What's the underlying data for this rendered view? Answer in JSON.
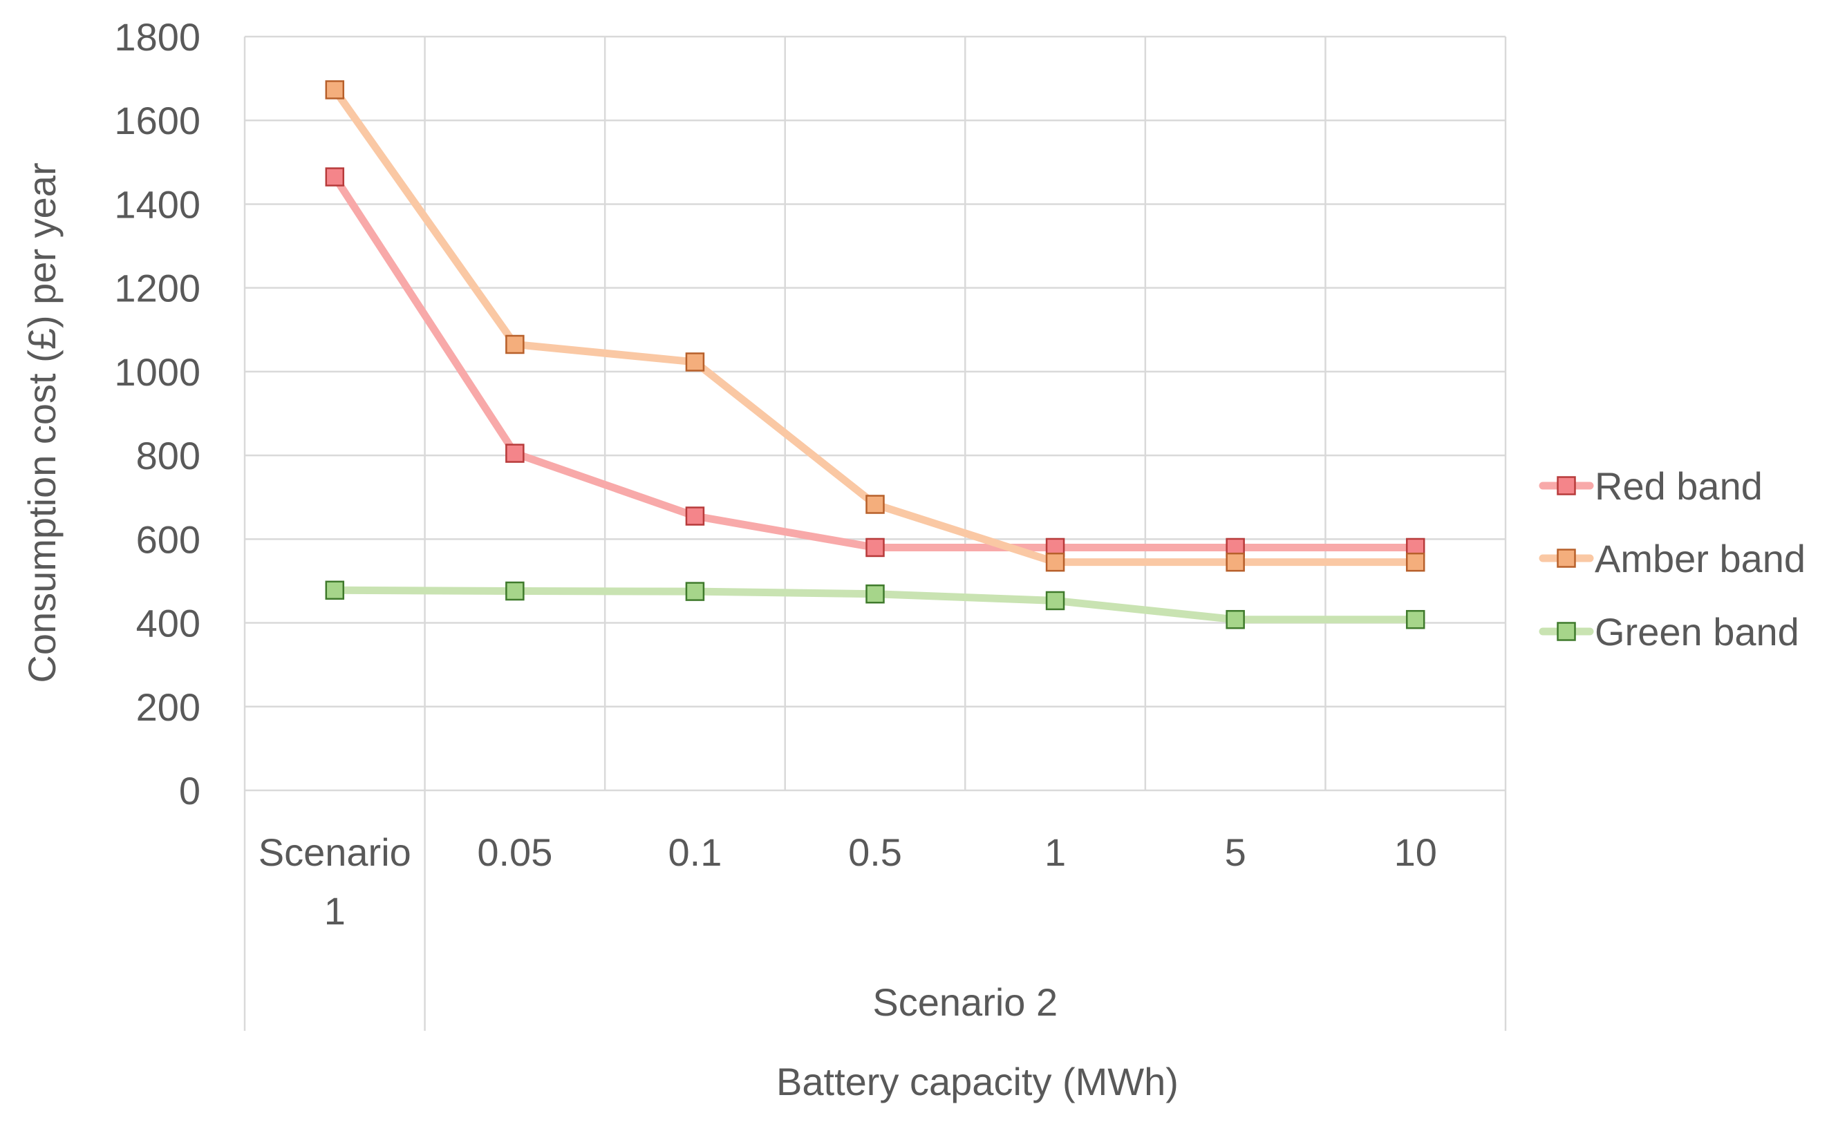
{
  "chart_data": {
    "type": "line",
    "title": "",
    "xlabel": "Battery capacity (MWh)",
    "ylabel": "Consumption cost (£) per year",
    "ylim": [
      0,
      1800
    ],
    "yticks": [
      0,
      200,
      400,
      600,
      800,
      1000,
      1200,
      1400,
      1600,
      1800
    ],
    "grid": true,
    "legend_position": "right",
    "categories": [
      {
        "label": "Scenario",
        "label2": "1",
        "group": "Scenario 1"
      },
      {
        "label": "0.05",
        "group": "Scenario 2"
      },
      {
        "label": "0.1",
        "group": "Scenario 2"
      },
      {
        "label": "0.5",
        "group": "Scenario 2"
      },
      {
        "label": "1",
        "group": "Scenario 2"
      },
      {
        "label": "5",
        "group": "Scenario 2"
      },
      {
        "label": "10",
        "group": "Scenario 2"
      }
    ],
    "group_label": "Scenario 2",
    "series": [
      {
        "name": "Red band",
        "line_color": "#F8A9A9",
        "marker_fill": "#F4858A",
        "marker_edge": "#B73B3B",
        "values": [
          1465,
          805,
          655,
          580,
          580,
          580,
          580
        ]
      },
      {
        "name": "Amber band",
        "line_color": "#FAC8A4",
        "marker_fill": "#F4AE7C",
        "marker_edge": "#B7602B",
        "values": [
          1673,
          1065,
          1023,
          683,
          545,
          545,
          545
        ]
      },
      {
        "name": "Green band",
        "line_color": "#C9E3B2",
        "marker_fill": "#A6D58A",
        "marker_edge": "#3F7A2C",
        "values": [
          478,
          476,
          475,
          469,
          453,
          408,
          408
        ]
      }
    ]
  }
}
